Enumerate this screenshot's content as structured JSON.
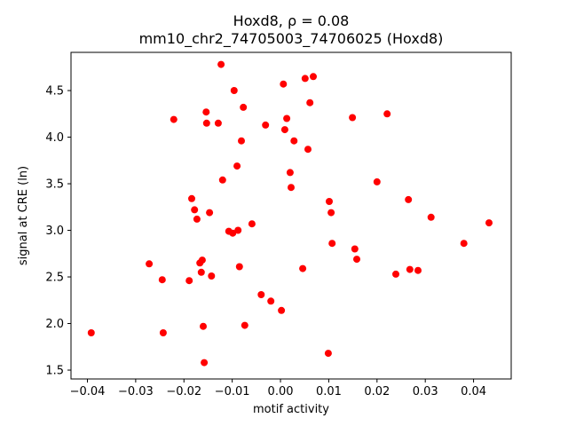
{
  "chart_data": {
    "type": "scatter",
    "title": "Hoxd8, ρ = 0.08",
    "subtitle": "mm10_chr2_74705003_74706025 (Hoxd8)",
    "xlabel": "motif activity",
    "ylabel": "signal at CRE (ln)",
    "xlim": [
      -0.0434,
      0.0478
    ],
    "ylim": [
      1.405,
      4.91
    ],
    "grid": false,
    "legend": null,
    "marker_color": "#ff0000",
    "marker_radius": 4,
    "xticks": {
      "values": [
        -0.04,
        -0.03,
        -0.02,
        -0.01,
        0.0,
        0.01,
        0.02,
        0.03,
        0.04
      ],
      "labels": [
        "−0.04",
        "−0.03",
        "−0.02",
        "−0.01",
        "0.00",
        "0.01",
        "0.02",
        "0.03",
        "0.04"
      ]
    },
    "yticks": {
      "values": [
        1.5,
        2.0,
        2.5,
        3.0,
        3.5,
        4.0,
        4.5
      ],
      "labels": [
        "1.5",
        "2.0",
        "2.5",
        "3.0",
        "3.5",
        "4.0",
        "4.5"
      ]
    },
    "points": [
      [
        -0.0392,
        1.9
      ],
      [
        -0.0272,
        2.64
      ],
      [
        -0.0245,
        2.47
      ],
      [
        -0.0243,
        1.9
      ],
      [
        -0.0221,
        4.19
      ],
      [
        -0.0189,
        2.46
      ],
      [
        -0.0184,
        3.34
      ],
      [
        -0.0178,
        3.22
      ],
      [
        -0.0173,
        3.12
      ],
      [
        -0.0167,
        2.65
      ],
      [
        -0.0164,
        2.55
      ],
      [
        -0.0162,
        2.68
      ],
      [
        -0.016,
        1.97
      ],
      [
        -0.0158,
        1.58
      ],
      [
        -0.0154,
        4.27
      ],
      [
        -0.0153,
        4.15
      ],
      [
        -0.0147,
        3.19
      ],
      [
        -0.0143,
        2.51
      ],
      [
        -0.0129,
        4.15
      ],
      [
        -0.0123,
        4.78
      ],
      [
        -0.012,
        3.54
      ],
      [
        -0.0107,
        2.99
      ],
      [
        -0.0099,
        2.97
      ],
      [
        -0.0096,
        4.5
      ],
      [
        -0.009,
        3.69
      ],
      [
        -0.0088,
        3.0
      ],
      [
        -0.0085,
        2.61
      ],
      [
        -0.0081,
        3.96
      ],
      [
        -0.0077,
        4.32
      ],
      [
        -0.0074,
        1.98
      ],
      [
        -0.0059,
        3.07
      ],
      [
        -0.004,
        2.31
      ],
      [
        -0.0031,
        4.13
      ],
      [
        -0.002,
        2.24
      ],
      [
        0.0002,
        2.14
      ],
      [
        0.0006,
        4.57
      ],
      [
        0.0009,
        4.08
      ],
      [
        0.0013,
        4.2
      ],
      [
        0.002,
        3.62
      ],
      [
        0.0022,
        3.46
      ],
      [
        0.0028,
        3.96
      ],
      [
        0.0046,
        2.59
      ],
      [
        0.0051,
        4.63
      ],
      [
        0.0057,
        3.87
      ],
      [
        0.0061,
        4.37
      ],
      [
        0.0068,
        4.65
      ],
      [
        0.0099,
        1.68
      ],
      [
        0.0101,
        3.31
      ],
      [
        0.0105,
        3.19
      ],
      [
        0.0107,
        2.86
      ],
      [
        0.0149,
        4.21
      ],
      [
        0.0154,
        2.8
      ],
      [
        0.0158,
        2.69
      ],
      [
        0.02,
        3.52
      ],
      [
        0.0221,
        4.25
      ],
      [
        0.0239,
        2.53
      ],
      [
        0.0265,
        3.33
      ],
      [
        0.0268,
        2.58
      ],
      [
        0.0285,
        2.57
      ],
      [
        0.0312,
        3.14
      ],
      [
        0.038,
        2.86
      ],
      [
        0.0432,
        3.08
      ]
    ]
  }
}
